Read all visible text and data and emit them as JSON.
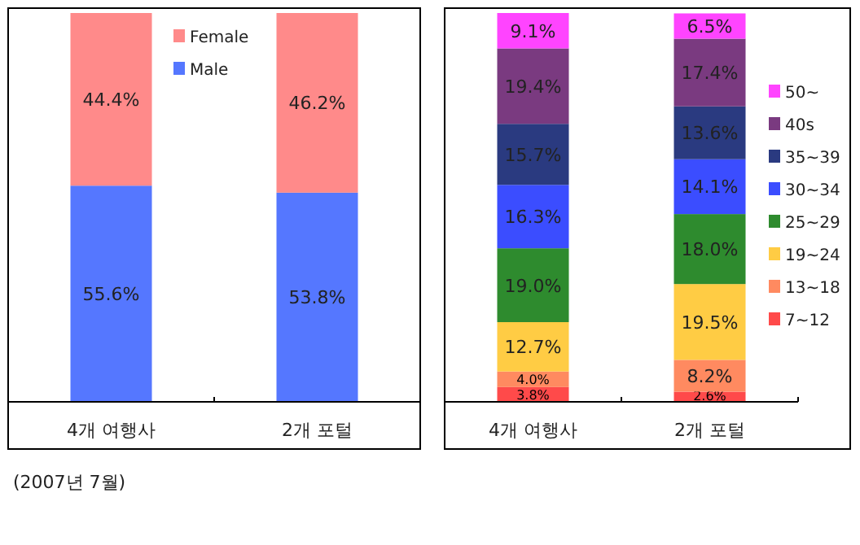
{
  "chart_data": [
    {
      "type": "bar",
      "stacked": true,
      "categories": [
        "4개 여행사",
        "2개 포털"
      ],
      "ylim": [
        0,
        100
      ],
      "tick_labels": "x",
      "legend": "top",
      "series": [
        {
          "name": "Male",
          "color": "#5577ff",
          "values": [
            55.6,
            53.8
          ],
          "value_labels": [
            "55.6%",
            "53.8%"
          ]
        },
        {
          "name": "Female",
          "color": "#ff8a8a",
          "values": [
            44.4,
            46.2
          ],
          "value_labels": [
            "44.4%",
            "46.2%"
          ]
        }
      ],
      "annotations": [
        "(2007년 7월)"
      ]
    },
    {
      "type": "bar",
      "stacked": true,
      "categories": [
        "4개 여행사",
        "2개 포털"
      ],
      "ylim": [
        0,
        100
      ],
      "tick_labels": "x",
      "legend": "right",
      "series": [
        {
          "name": "7~12",
          "color": "#ff4a4a",
          "values": [
            3.8,
            2.6
          ],
          "value_labels": [
            "3.8%",
            "2.6%"
          ]
        },
        {
          "name": "13~18",
          "color": "#ff8a60",
          "values": [
            4.0,
            8.2
          ],
          "value_labels": [
            "4.0%",
            "8.2%"
          ]
        },
        {
          "name": "19~24",
          "color": "#ffcc44",
          "values": [
            12.7,
            19.5
          ],
          "value_labels": [
            "12.7%",
            "19.5%"
          ]
        },
        {
          "name": "25~29",
          "color": "#2e8b2e",
          "values": [
            19.0,
            18.0
          ],
          "value_labels": [
            "19.0%",
            "18.0%"
          ]
        },
        {
          "name": "30~34",
          "color": "#3b4dff",
          "values": [
            16.3,
            14.1
          ],
          "value_labels": [
            "16.3%",
            "14.1%"
          ]
        },
        {
          "name": "35~39",
          "color": "#2a3a80",
          "values": [
            15.7,
            13.6
          ],
          "value_labels": [
            "15.7%",
            "13.6%"
          ]
        },
        {
          "name": "40s",
          "color": "#7a3a80",
          "values": [
            19.4,
            17.4
          ],
          "value_labels": [
            "19.4%",
            "17.4%"
          ]
        },
        {
          "name": "50~",
          "color": "#ff44ff",
          "values": [
            9.1,
            6.5
          ],
          "value_labels": [
            "9.1%",
            "6.5%"
          ]
        }
      ]
    }
  ]
}
